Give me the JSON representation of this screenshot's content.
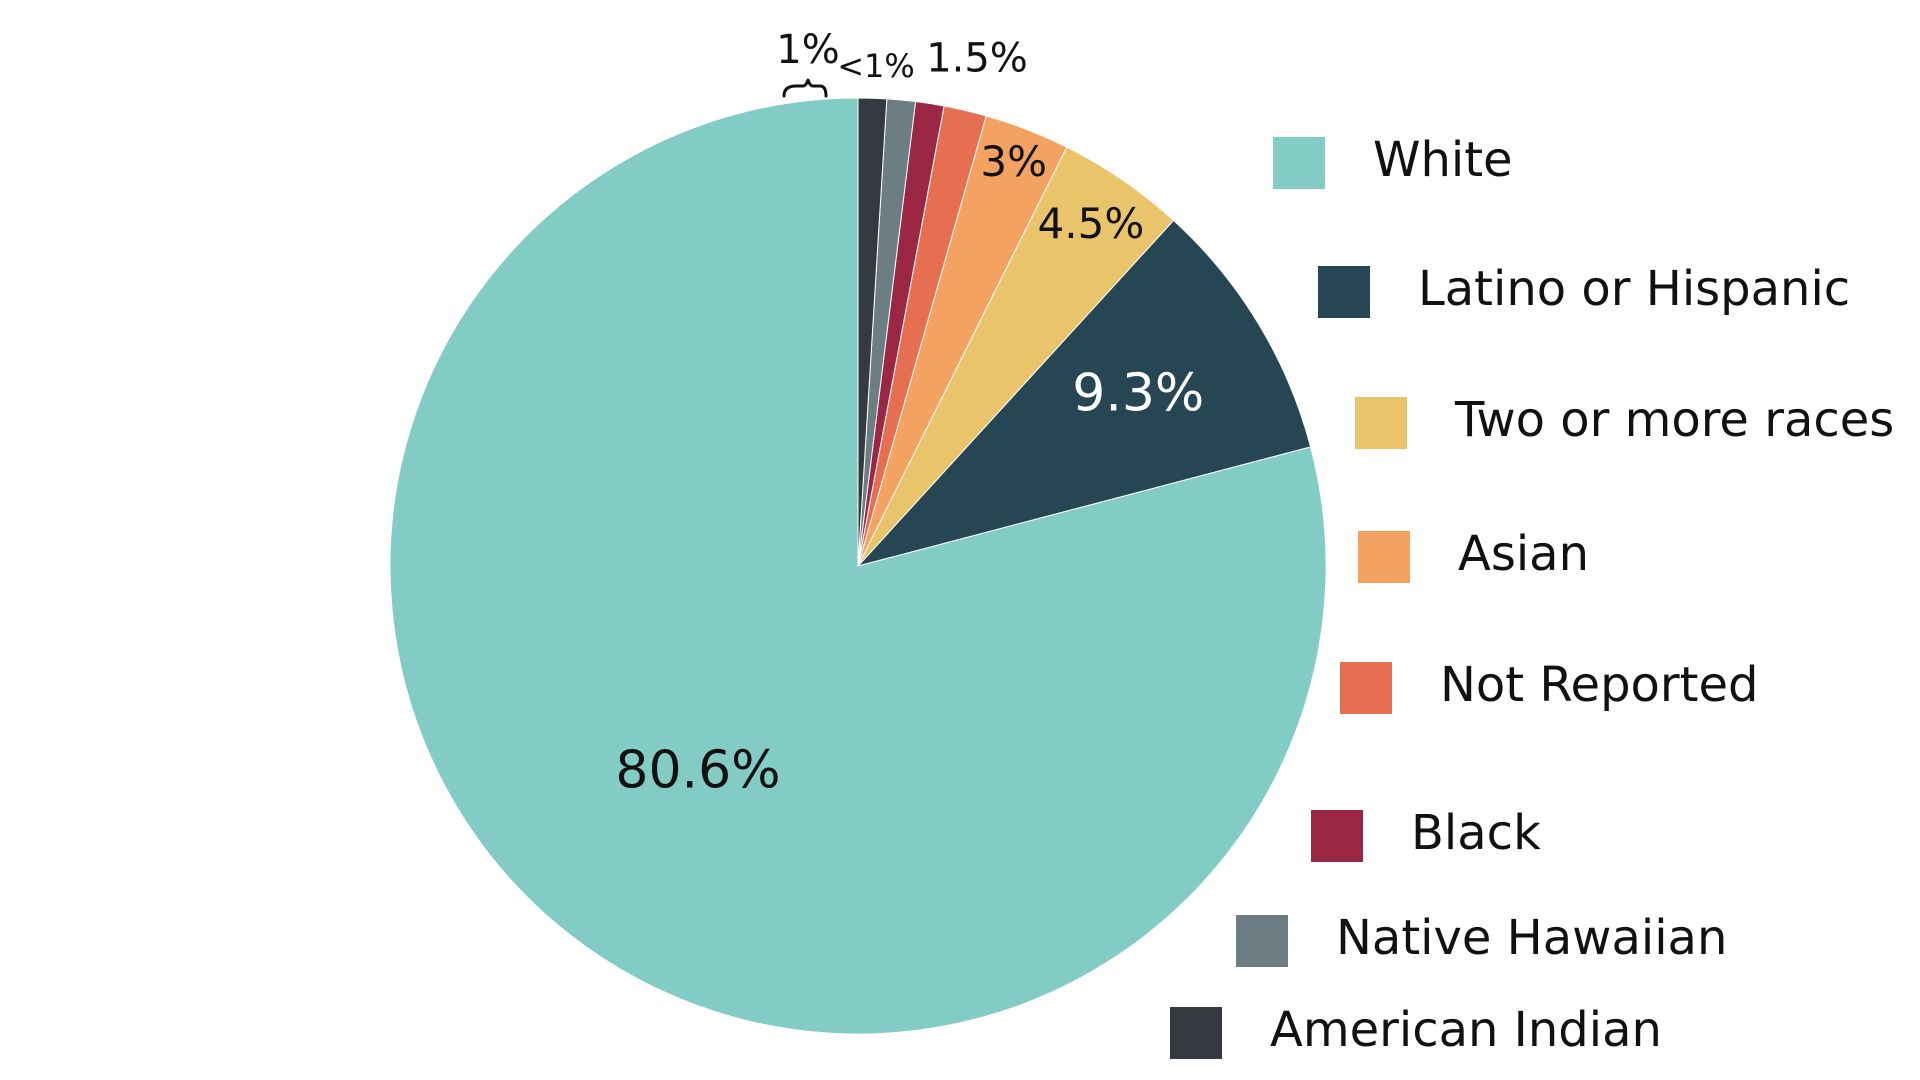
{
  "chart_data": {
    "type": "pie",
    "title": "",
    "start": "top",
    "direction": "counterclockwise",
    "legend_position": "right",
    "slices": [
      {
        "name": "White",
        "value": 80.6,
        "label": "80.6%",
        "color": "#83CCC5",
        "label_color": "#111111"
      },
      {
        "name": "Latino or Hispanic",
        "value": 9.3,
        "label": "9.3%",
        "color": "#264653",
        "label_color": "#ffffff"
      },
      {
        "name": "Two or more races",
        "value": 4.5,
        "label": "4.5%",
        "color": "#E9C46A",
        "label_color": "#111111"
      },
      {
        "name": "Asian",
        "value": 3,
        "label": "3%",
        "color": "#F4A261",
        "label_color": "#111111"
      },
      {
        "name": "Not Reported",
        "value": 1.5,
        "label": "1.5%",
        "color": "#E76F51",
        "label_color": "#111111"
      },
      {
        "name": "Black",
        "value": 1,
        "label": "",
        "color": "#9B2744",
        "label_color": "#111111"
      },
      {
        "name": "Native Hawaiian",
        "value": 1,
        "label": "",
        "color": "#6C7D84",
        "label_color": "#111111"
      },
      {
        "name": "American Indian",
        "value": 1,
        "label": "",
        "color": "#343A3F",
        "label_color": "#111111"
      }
    ],
    "annotations": [
      {
        "text": "1%",
        "refers_to": [
          "Black",
          "Native Hawaiian"
        ]
      },
      {
        "text": "<1%",
        "refers_to": [
          "American Indian"
        ]
      }
    ]
  }
}
